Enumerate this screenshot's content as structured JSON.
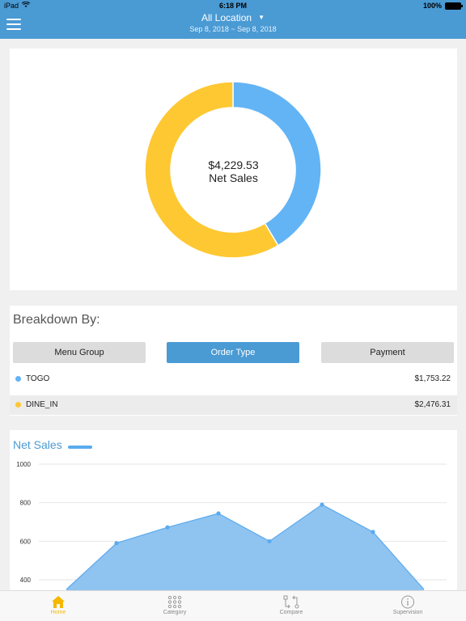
{
  "status_bar": {
    "device": "iPad",
    "time": "6:18 PM",
    "battery": "100%"
  },
  "nav": {
    "title": "All Location",
    "date_range": "Sep 8, 2018 ~ Sep 8, 2018"
  },
  "summary": {
    "amount": "$4,229.53",
    "label": "Net Sales"
  },
  "breakdown": {
    "title": "Breakdown By:",
    "tabs": [
      "Menu Group",
      "Order Type",
      "Payment"
    ],
    "active_tab": "Order Type",
    "rows": [
      {
        "label": "TOGO",
        "value": "$1,753.22",
        "color": "#62b4f5"
      },
      {
        "label": "DINE_IN",
        "value": "$2,476.31",
        "color": "#fec832"
      }
    ]
  },
  "chart_data": [
    {
      "type": "pie",
      "labels": [
        "TOGO",
        "DINE_IN"
      ],
      "values": [
        1753.22,
        2476.31
      ],
      "colors": [
        "#62b4f5",
        "#fec832"
      ],
      "center_text": [
        "$4,229.53",
        "Net Sales"
      ]
    },
    {
      "type": "area",
      "title": "Net Sales",
      "y_ticks": [
        "1000",
        "800",
        "600",
        "400"
      ],
      "ylim_visible": [
        360,
        1000
      ],
      "y": [
        350,
        590,
        672,
        744,
        600,
        790,
        648,
        350
      ],
      "color": "#5aabee",
      "fill": "#8fc3f0"
    }
  ],
  "tabbar": {
    "items": [
      {
        "label": "Home",
        "icon": "home-icon"
      },
      {
        "label": "Category",
        "icon": "grid-icon"
      },
      {
        "label": "Compare",
        "icon": "compare-icon"
      },
      {
        "label": "Supervision",
        "icon": "info-icon"
      }
    ],
    "active": "Home",
    "active_color": "#f5b800"
  }
}
